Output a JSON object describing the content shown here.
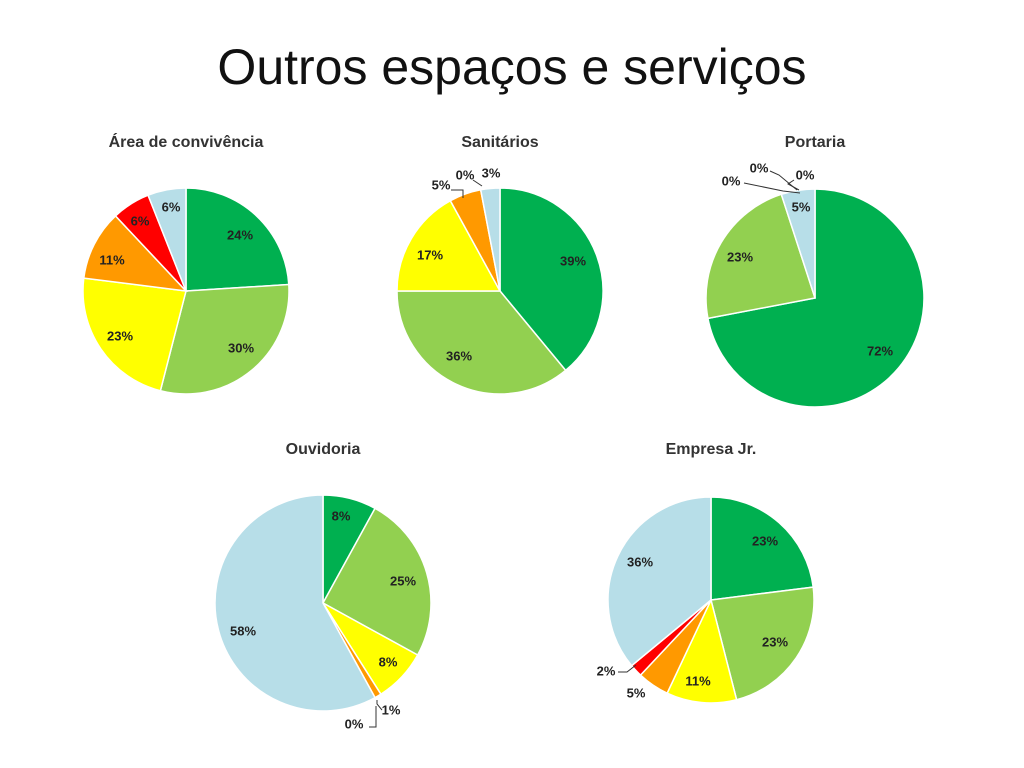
{
  "page_title": "Outros espaços e serviços",
  "colors": {
    "dark_green": "#00B050",
    "light_green": "#92D050",
    "yellow": "#FFFF00",
    "orange": "#FF9900",
    "red": "#FF0000",
    "light_blue": "#B7DEE8"
  },
  "chart_data": [
    {
      "type": "pie",
      "title": "Área de convivência",
      "slices": [
        {
          "value": 24,
          "label": "24%",
          "color": "#00B050"
        },
        {
          "value": 30,
          "label": "30%",
          "color": "#92D050"
        },
        {
          "value": 23,
          "label": "23%",
          "color": "#FFFF00"
        },
        {
          "value": 11,
          "label": "11%",
          "color": "#FF9900"
        },
        {
          "value": 6,
          "label": "6%",
          "color": "#FF0000"
        },
        {
          "value": 6,
          "label": "6%",
          "color": "#B7DEE8"
        }
      ]
    },
    {
      "type": "pie",
      "title": "Sanitários",
      "slices": [
        {
          "value": 39,
          "label": "39%",
          "color": "#00B050"
        },
        {
          "value": 36,
          "label": "36%",
          "color": "#92D050"
        },
        {
          "value": 17,
          "label": "17%",
          "color": "#FFFF00"
        },
        {
          "value": 5,
          "label": "5%",
          "color": "#FF9900"
        },
        {
          "value": 0,
          "label": "0%",
          "color": "#FF0000"
        },
        {
          "value": 3,
          "label": "3%",
          "color": "#B7DEE8"
        }
      ]
    },
    {
      "type": "pie",
      "title": "Portaria",
      "slices": [
        {
          "value": 72,
          "label": "72%",
          "color": "#00B050"
        },
        {
          "value": 23,
          "label": "23%",
          "color": "#92D050"
        },
        {
          "value": 0,
          "label": "0%",
          "color": "#FFFF00"
        },
        {
          "value": 0,
          "label": "0%",
          "color": "#FF9900"
        },
        {
          "value": 0,
          "label": "0%",
          "color": "#FF0000"
        },
        {
          "value": 5,
          "label": "5%",
          "color": "#B7DEE8"
        }
      ]
    },
    {
      "type": "pie",
      "title": "Ouvidoria",
      "slices": [
        {
          "value": 8,
          "label": "8%",
          "color": "#00B050"
        },
        {
          "value": 25,
          "label": "25%",
          "color": "#92D050"
        },
        {
          "value": 8,
          "label": "8%",
          "color": "#FFFF00"
        },
        {
          "value": 1,
          "label": "1%",
          "color": "#FF9900"
        },
        {
          "value": 0,
          "label": "0%",
          "color": "#FF0000"
        },
        {
          "value": 58,
          "label": "58%",
          "color": "#B7DEE8"
        }
      ]
    },
    {
      "type": "pie",
      "title": "Empresa Jr.",
      "slices": [
        {
          "value": 23,
          "label": "23%",
          "color": "#00B050"
        },
        {
          "value": 23,
          "label": "23%",
          "color": "#92D050"
        },
        {
          "value": 11,
          "label": "11%",
          "color": "#FFFF00"
        },
        {
          "value": 5,
          "label": "5%",
          "color": "#FF9900"
        },
        {
          "value": 2,
          "label": "2%",
          "color": "#FF0000"
        },
        {
          "value": 36,
          "label": "36%",
          "color": "#B7DEE8"
        }
      ]
    }
  ]
}
